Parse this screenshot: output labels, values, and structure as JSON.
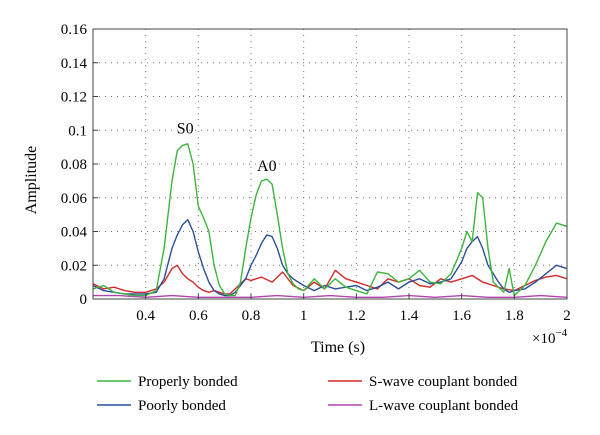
{
  "chart_data": {
    "type": "line",
    "xlabel": "Time (s)",
    "ylabel": "Amplitude",
    "x_exponent_label": "×10",
    "x_exponent_power": "−4",
    "xlim": [
      0.2,
      2.0
    ],
    "ylim": [
      0,
      0.16
    ],
    "grid": true,
    "legend_position": "bottom",
    "x_ticks": [
      "0.4",
      "0.6",
      "0.8",
      "1",
      "1.2",
      "1.4",
      "1.6",
      "1.8",
      "2"
    ],
    "y_ticks": [
      "0",
      "0.02",
      "0.04",
      "0.06",
      "0.08",
      "0.1",
      "0.12",
      "0.14",
      "0.16"
    ],
    "annotations": [
      {
        "text": "S0",
        "x": 0.55,
        "y": 0.095
      },
      {
        "text": "A0",
        "x": 0.86,
        "y": 0.073
      }
    ],
    "series": [
      {
        "name": "Properly bonded",
        "color": "#3db53d",
        "x": [
          0.2,
          0.24,
          0.28,
          0.32,
          0.36,
          0.4,
          0.44,
          0.47,
          0.5,
          0.52,
          0.54,
          0.56,
          0.58,
          0.6,
          0.62,
          0.64,
          0.66,
          0.68,
          0.7,
          0.72,
          0.74,
          0.76,
          0.78,
          0.8,
          0.82,
          0.84,
          0.86,
          0.88,
          0.9,
          0.92,
          0.94,
          0.96,
          0.98,
          1.0,
          1.04,
          1.08,
          1.12,
          1.16,
          1.2,
          1.24,
          1.28,
          1.32,
          1.36,
          1.4,
          1.44,
          1.48,
          1.52,
          1.56,
          1.6,
          1.62,
          1.64,
          1.66,
          1.68,
          1.7,
          1.72,
          1.74,
          1.76,
          1.78,
          1.8,
          1.82,
          1.84,
          1.88,
          1.92,
          1.96,
          2.0
        ],
        "y": [
          0.006,
          0.008,
          0.004,
          0.003,
          0.002,
          0.002,
          0.005,
          0.03,
          0.07,
          0.088,
          0.091,
          0.092,
          0.08,
          0.055,
          0.048,
          0.04,
          0.02,
          0.008,
          0.003,
          0.002,
          0.002,
          0.01,
          0.03,
          0.048,
          0.062,
          0.07,
          0.071,
          0.068,
          0.05,
          0.03,
          0.015,
          0.009,
          0.006,
          0.005,
          0.012,
          0.006,
          0.012,
          0.007,
          0.005,
          0.003,
          0.016,
          0.015,
          0.01,
          0.012,
          0.017,
          0.01,
          0.009,
          0.015,
          0.03,
          0.04,
          0.034,
          0.063,
          0.06,
          0.03,
          0.01,
          0.007,
          0.004,
          0.018,
          0.002,
          0.005,
          0.008,
          0.02,
          0.034,
          0.045,
          0.043
        ]
      },
      {
        "name": "Poorly bonded",
        "color": "#2b4f9a",
        "x": [
          0.2,
          0.24,
          0.28,
          0.32,
          0.36,
          0.4,
          0.44,
          0.47,
          0.5,
          0.52,
          0.54,
          0.56,
          0.58,
          0.6,
          0.62,
          0.64,
          0.66,
          0.68,
          0.7,
          0.72,
          0.74,
          0.76,
          0.78,
          0.8,
          0.82,
          0.84,
          0.86,
          0.88,
          0.9,
          0.92,
          0.94,
          0.96,
          1.0,
          1.04,
          1.08,
          1.12,
          1.16,
          1.2,
          1.24,
          1.28,
          1.32,
          1.36,
          1.4,
          1.44,
          1.48,
          1.52,
          1.56,
          1.6,
          1.62,
          1.64,
          1.66,
          1.68,
          1.7,
          1.72,
          1.74,
          1.76,
          1.78,
          1.8,
          1.84,
          1.88,
          1.92,
          1.96,
          2.0
        ],
        "y": [
          0.008,
          0.005,
          0.004,
          0.003,
          0.003,
          0.003,
          0.004,
          0.012,
          0.03,
          0.038,
          0.044,
          0.047,
          0.04,
          0.028,
          0.018,
          0.01,
          0.005,
          0.003,
          0.002,
          0.002,
          0.004,
          0.008,
          0.012,
          0.02,
          0.026,
          0.033,
          0.038,
          0.037,
          0.03,
          0.02,
          0.015,
          0.012,
          0.008,
          0.005,
          0.008,
          0.006,
          0.007,
          0.008,
          0.005,
          0.007,
          0.01,
          0.006,
          0.01,
          0.012,
          0.009,
          0.01,
          0.012,
          0.022,
          0.03,
          0.034,
          0.037,
          0.03,
          0.02,
          0.015,
          0.01,
          0.006,
          0.004,
          0.005,
          0.006,
          0.01,
          0.015,
          0.02,
          0.018
        ]
      },
      {
        "name": "S-wave couplant bonded",
        "color": "#d42a2a",
        "x": [
          0.2,
          0.24,
          0.28,
          0.32,
          0.36,
          0.4,
          0.44,
          0.47,
          0.5,
          0.52,
          0.54,
          0.56,
          0.58,
          0.6,
          0.62,
          0.64,
          0.66,
          0.68,
          0.7,
          0.72,
          0.74,
          0.76,
          0.78,
          0.8,
          0.84,
          0.88,
          0.92,
          0.96,
          1.0,
          1.04,
          1.08,
          1.12,
          1.16,
          1.2,
          1.24,
          1.28,
          1.32,
          1.36,
          1.4,
          1.44,
          1.48,
          1.52,
          1.56,
          1.6,
          1.64,
          1.68,
          1.72,
          1.76,
          1.8,
          1.84,
          1.88,
          1.92,
          1.96,
          2.0
        ],
        "y": [
          0.009,
          0.006,
          0.007,
          0.005,
          0.004,
          0.004,
          0.006,
          0.01,
          0.018,
          0.02,
          0.015,
          0.012,
          0.01,
          0.007,
          0.005,
          0.004,
          0.005,
          0.004,
          0.003,
          0.003,
          0.006,
          0.009,
          0.012,
          0.011,
          0.013,
          0.01,
          0.016,
          0.008,
          0.005,
          0.01,
          0.006,
          0.017,
          0.012,
          0.01,
          0.008,
          0.006,
          0.012,
          0.01,
          0.012,
          0.008,
          0.007,
          0.012,
          0.01,
          0.012,
          0.014,
          0.01,
          0.008,
          0.006,
          0.005,
          0.008,
          0.011,
          0.013,
          0.014,
          0.012
        ]
      },
      {
        "name": "L-wave couplant bonded",
        "color": "#b044b0",
        "x": [
          0.2,
          0.3,
          0.4,
          0.5,
          0.6,
          0.7,
          0.8,
          0.9,
          1.0,
          1.1,
          1.2,
          1.3,
          1.4,
          1.5,
          1.6,
          1.7,
          1.8,
          1.9,
          2.0
        ],
        "y": [
          0.002,
          0.002,
          0.001,
          0.002,
          0.001,
          0.001,
          0.001,
          0.002,
          0.001,
          0.002,
          0.001,
          0.001,
          0.002,
          0.001,
          0.002,
          0.001,
          0.001,
          0.002,
          0.001
        ]
      }
    ]
  }
}
